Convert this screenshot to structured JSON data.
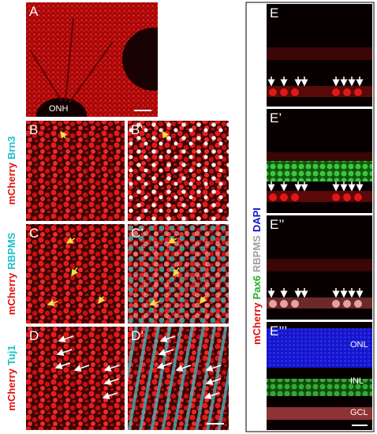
{
  "panels": [
    {
      "label": "A",
      "annotation": "ONH"
    },
    {
      "label": "B"
    },
    {
      "label": "B’"
    },
    {
      "label": "C"
    },
    {
      "label": "C’"
    },
    {
      "label": "D"
    },
    {
      "label": "D’"
    },
    {
      "label": "E"
    },
    {
      "label": "E’"
    },
    {
      "label": "E’’"
    },
    {
      "label": "E’’’"
    }
  ],
  "row_labels": [
    {
      "parts": [
        "mCherry",
        "Brn3"
      ]
    },
    {
      "parts": [
        "mCherry",
        "RBPMS"
      ]
    },
    {
      "parts": [
        "mCherry",
        "Tuj1"
      ]
    }
  ],
  "side_label": {
    "parts": [
      "mCherry",
      "Pax6",
      "RBPMS",
      "DAPI"
    ]
  },
  "layer_labels": [
    "ONL",
    "INL",
    "GCL"
  ]
}
